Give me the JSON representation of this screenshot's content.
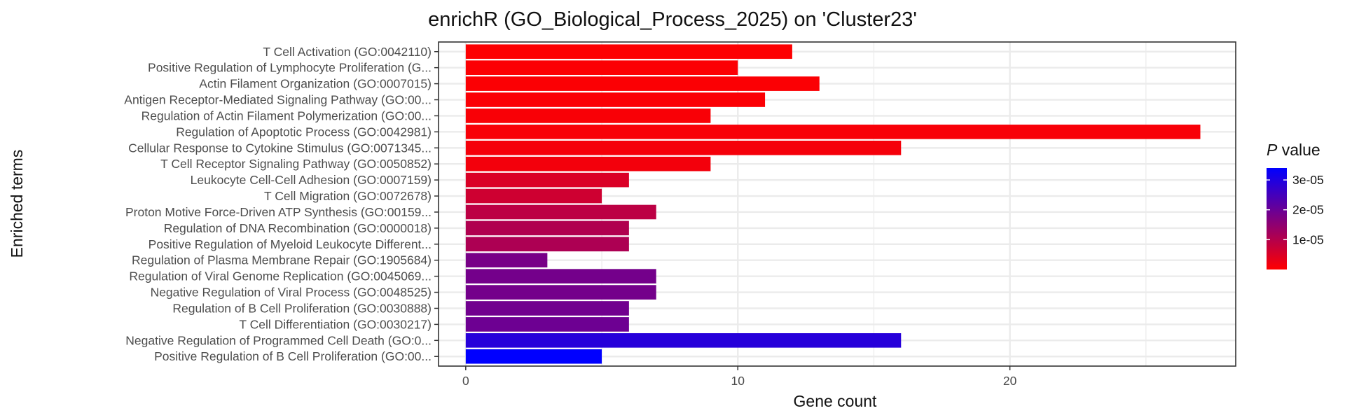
{
  "chart_data": {
    "type": "bar",
    "orientation": "horizontal",
    "title": "enrichR (GO_Biological_Process_2025) on 'Cluster23'",
    "xlabel": "Gene count",
    "ylabel": "Enriched terms",
    "xlim": [
      -1,
      28.3
    ],
    "xticks": [
      0,
      10,
      20
    ],
    "grid": true,
    "legend": {
      "title_italic": "P",
      "title_rest": " value",
      "placement": "right",
      "colors": {
        "low": "#ff0000",
        "high": "#0000ff"
      },
      "range": [
        0,
        3.4e-05
      ],
      "ticks": [
        {
          "value": 1e-05,
          "label": "1e-05"
        },
        {
          "value": 2e-05,
          "label": "2e-05"
        },
        {
          "value": 3e-05,
          "label": "3e-05"
        }
      ]
    },
    "categories": [
      "T Cell Activation (GO:0042110)",
      "Positive Regulation of Lymphocyte Proliferation (G...",
      "Actin Filament Organization (GO:0007015)",
      "Antigen Receptor-Mediated Signaling Pathway (GO:00...",
      "Regulation of Actin Filament Polymerization (GO:00...",
      "Regulation of Apoptotic Process (GO:0042981)",
      "Cellular Response to Cytokine Stimulus (GO:0071345...",
      "T Cell Receptor Signaling Pathway (GO:0050852)",
      "Leukocyte Cell-Cell Adhesion (GO:0007159)",
      "T Cell Migration (GO:0072678)",
      "Proton Motive Force-Driven ATP Synthesis (GO:00159...",
      "Regulation of DNA Recombination (GO:0000018)",
      "Positive Regulation of Myeloid Leukocyte Different...",
      "Regulation of Plasma Membrane Repair (GO:1905684)",
      "Regulation of Viral Genome Replication (GO:0045069...",
      "Negative Regulation of Viral Process (GO:0048525)",
      "Regulation of B Cell Proliferation (GO:0030888)",
      "T Cell Differentiation (GO:0030217)",
      "Negative Regulation of Programmed Cell Death (GO:0...",
      "Positive Regulation of B Cell Proliferation (GO:00..."
    ],
    "values": [
      12,
      10,
      13,
      11,
      9,
      27,
      16,
      9,
      6,
      5,
      7,
      6,
      6,
      3,
      7,
      7,
      6,
      6,
      16,
      5
    ],
    "p_values": [
      3e-07,
      4e-07,
      5e-07,
      6e-07,
      8e-07,
      1e-06,
      1.3e-06,
      1.6e-06,
      5e-06,
      6.5e-06,
      9e-06,
      1.05e-05,
      1.1e-05,
      1.8e-05,
      1.85e-05,
      1.85e-05,
      1.9e-05,
      1.95e-05,
      2.9e-05,
      3.4e-05
    ]
  }
}
